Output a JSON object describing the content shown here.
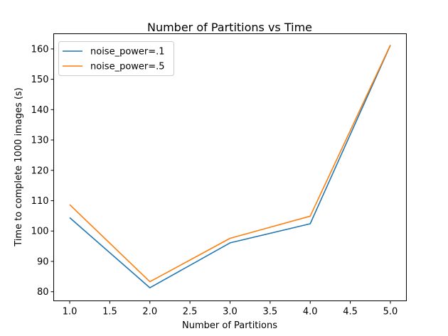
{
  "chart_data": {
    "type": "line",
    "title": "Number of Partitions vs Time",
    "xlabel": "Number of Partitions",
    "ylabel": "Time to complete 1000 images (s)",
    "x": [
      1.0,
      2.0,
      3.0,
      4.0,
      5.0
    ],
    "xlim": [
      0.8,
      5.2
    ],
    "ylim": [
      77,
      165
    ],
    "xticks": [
      "1.0",
      "1.5",
      "2.0",
      "2.5",
      "3.0",
      "3.5",
      "4.0",
      "4.5",
      "5.0"
    ],
    "xtick_values": [
      1.0,
      1.5,
      2.0,
      2.5,
      3.0,
      3.5,
      4.0,
      4.5,
      5.0
    ],
    "yticks": [
      "80",
      "90",
      "100",
      "110",
      "120",
      "130",
      "140",
      "150",
      "160"
    ],
    "ytick_values": [
      80,
      90,
      100,
      110,
      120,
      130,
      140,
      150,
      160
    ],
    "grid": false,
    "legend_position": "upper-left",
    "series": [
      {
        "name": "noise_power=.1",
        "color": "#1f77b4",
        "values": [
          104.4,
          81.3,
          96.1,
          102.4,
          161.2
        ]
      },
      {
        "name": "noise_power=.5",
        "color": "#ff7f0e",
        "values": [
          108.7,
          83.3,
          97.6,
          104.9,
          161.3
        ]
      }
    ]
  }
}
